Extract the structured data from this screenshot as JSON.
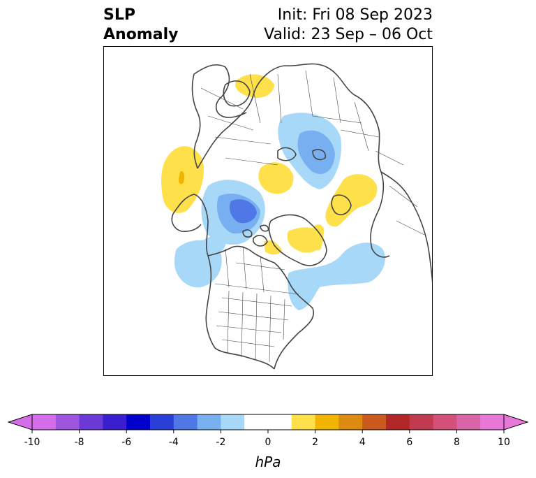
{
  "title": {
    "left_line1": "SLP",
    "left_line2": "Anomaly",
    "right_line1": "Init: Fri 08 Sep 2023",
    "right_line2": "Valid: 23 Sep – 06 Oct"
  },
  "colorbar": {
    "units": "hPa",
    "ticks": [
      "-10",
      "-8",
      "-6",
      "-4",
      "-2",
      "0",
      "2",
      "4",
      "6",
      "8",
      "10"
    ],
    "tick_values": [
      -10,
      -8,
      -6,
      -4,
      -2,
      0,
      2,
      4,
      6,
      8,
      10
    ],
    "extend": "both",
    "colors": [
      "#d46ee8",
      "#9d55de",
      "#6a39d6",
      "#3a1fd0",
      "#0000cc",
      "#2a3fd8",
      "#4f78e6",
      "#78aff0",
      "#a8d8f8",
      "#ffffff",
      "#ffffff",
      "#fde04a",
      "#f1b400",
      "#dc8a12",
      "#c9591c",
      "#b22828",
      "#c23a50",
      "#d35078",
      "#da64a8",
      "#e878d8"
    ],
    "colors_note": ""
  },
  "map": {
    "projection": "north-polar-stereographic",
    "field": "sea-level pressure anomaly",
    "fill_colors": {
      "neg_light": "#a8d8f8",
      "neg_mid": "#78aff0",
      "neg_strong": "#4f78e6",
      "pos_light": "#fde04a",
      "pos_mid": "#f1b400"
    },
    "coast_color": "#444444"
  }
}
